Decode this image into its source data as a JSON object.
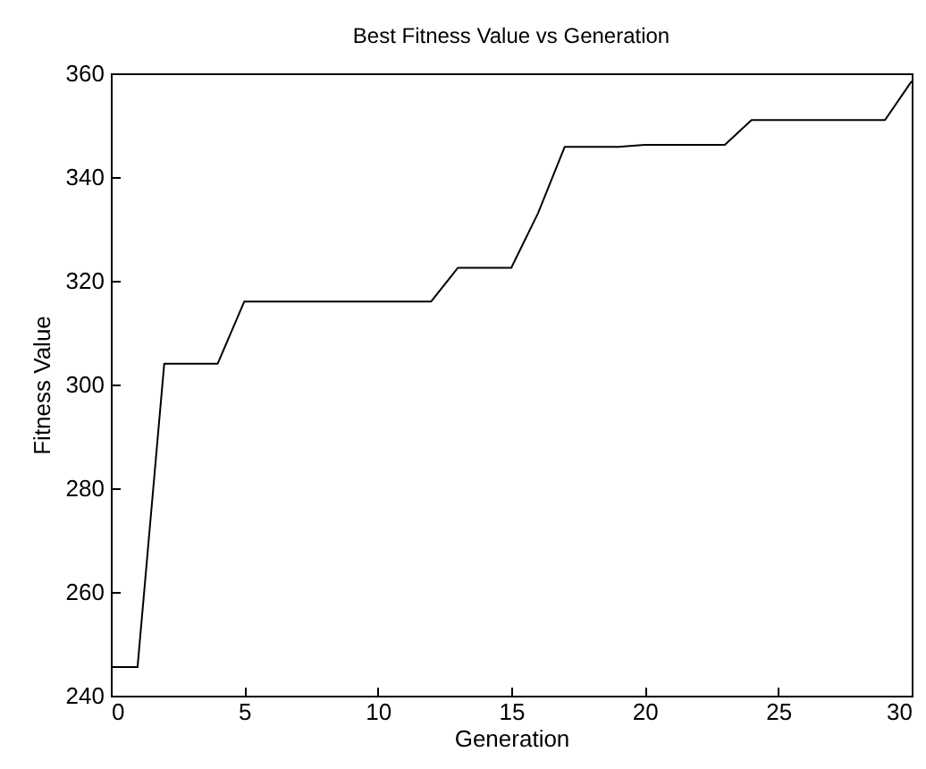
{
  "chart_data": {
    "type": "line",
    "title": "Best Fitness Value vs Generation",
    "xlabel": "Generation",
    "ylabel": "Fitness Value",
    "x": [
      0,
      1,
      2,
      3,
      4,
      5,
      6,
      7,
      8,
      9,
      10,
      11,
      12,
      13,
      14,
      15,
      16,
      17,
      18,
      19,
      20,
      21,
      22,
      23,
      24,
      25,
      26,
      27,
      28,
      29,
      30
    ],
    "series": [
      {
        "color": "#000000",
        "values": [
          245.5,
          245.5,
          304,
          304,
          304,
          316,
          316,
          316,
          316,
          316,
          316,
          316,
          316,
          322.5,
          322.5,
          322.5,
          333,
          345.8,
          345.8,
          345.8,
          346.2,
          346.2,
          346.2,
          346.2,
          351,
          351,
          351,
          351,
          351,
          351,
          358.5
        ]
      }
    ],
    "xlim": [
      0,
      30
    ],
    "xticks": [
      0,
      5,
      10,
      15,
      20,
      25,
      30
    ],
    "ylim": [
      240,
      360
    ],
    "yticks": [
      240,
      260,
      280,
      300,
      320,
      340,
      360
    ],
    "grid": false,
    "legend": false,
    "marker": "none",
    "line_style": "solid"
  }
}
